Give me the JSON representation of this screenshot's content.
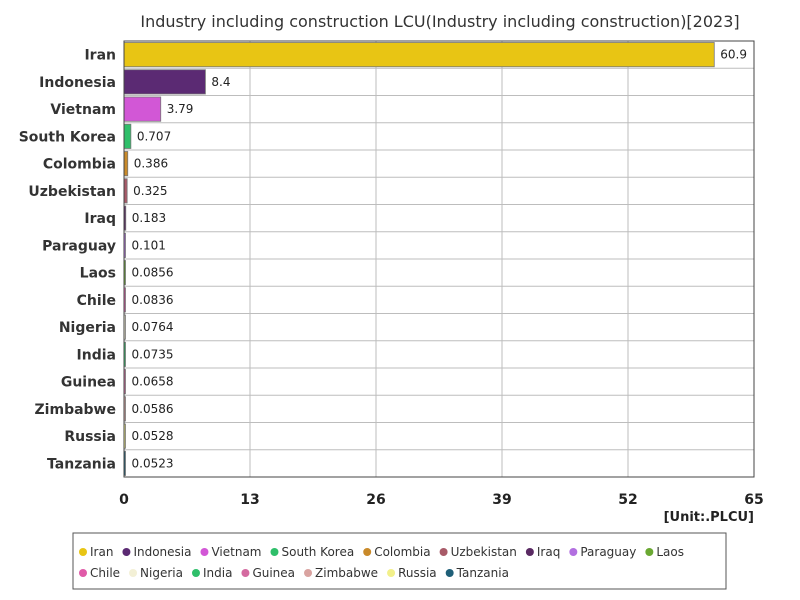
{
  "chart_data": {
    "type": "bar",
    "orientation": "horizontal",
    "title": "Industry including construction LCU(Industry including construction)[2023]",
    "unit": "[Unit:.PLCU]",
    "xlim": [
      0,
      65
    ],
    "xticks": [
      "0",
      "13",
      "26",
      "39",
      "52",
      "65"
    ],
    "grid": true,
    "legend_position": "bottom",
    "categories": [
      "Iran",
      "Indonesia",
      "Vietnam",
      "South Korea",
      "Colombia",
      "Uzbekistan",
      "Iraq",
      "Paraguay",
      "Laos",
      "Chile",
      "Nigeria",
      "India",
      "Guinea",
      "Zimbabwe",
      "Russia",
      "Tanzania"
    ],
    "values": [
      60.9,
      8.4,
      3.79,
      0.707,
      0.386,
      0.325,
      0.183,
      0.101,
      0.0856,
      0.0836,
      0.0764,
      0.0735,
      0.0658,
      0.0586,
      0.0528,
      0.0523
    ],
    "value_labels": [
      "60.9",
      "8.4",
      "3.79",
      "0.707",
      "0.386",
      "0.325",
      "0.183",
      "0.101",
      "0.0856",
      "0.0836",
      "0.0764",
      "0.0735",
      "0.0658",
      "0.0586",
      "0.0528",
      "0.0523"
    ],
    "colors": [
      "#e8c514",
      "#5b2a73",
      "#d257d6",
      "#2fbf6a",
      "#c98a2a",
      "#a85a68",
      "#5a2a63",
      "#b26fe0",
      "#6aa832",
      "#e05aa8",
      "#f3f0d6",
      "#2fbf6a",
      "#d46aa0",
      "#d9a3a0",
      "#f2f08a",
      "#1f5f78"
    ]
  }
}
